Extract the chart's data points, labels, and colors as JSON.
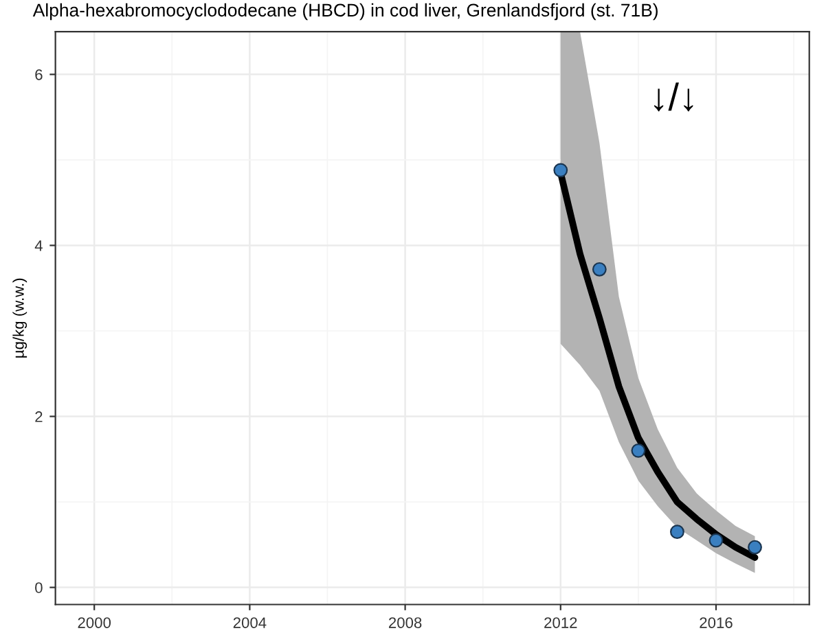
{
  "chart_data": {
    "type": "scatter",
    "title": "Alpha-hexabromocyclododecane (HBCD) in cod liver, Grenlandsfjord (st. 71B)",
    "ylabel": "µg/kg (w.w.)",
    "annotations": [
      "↓/↓"
    ],
    "series": [
      {
        "type": "line",
        "color": "#000000",
        "x": [
          2012,
          2012.5,
          2013,
          2013.5,
          2014,
          2014.5,
          2015,
          2015.5,
          2016,
          2016.5,
          2017
        ],
        "values": [
          4.85,
          3.9,
          3.15,
          2.35,
          1.75,
          1.35,
          1.0,
          0.8,
          0.62,
          0.47,
          0.35
        ],
        "marker": "none",
        "lower": [
          2.85,
          2.6,
          2.3,
          1.7,
          1.25,
          0.95,
          0.7,
          0.55,
          0.4,
          0.28,
          0.17
        ],
        "upper": [
          6.5,
          6.5,
          5.2,
          3.4,
          2.45,
          1.85,
          1.4,
          1.1,
          0.9,
          0.72,
          0.6
        ]
      },
      {
        "marker": "circle",
        "color": "#3a7fc0",
        "x": [
          2012,
          2013,
          2014,
          2015,
          2016,
          2017
        ],
        "values": [
          4.88,
          3.72,
          1.6,
          0.65,
          0.55,
          0.47
        ]
      }
    ],
    "xlim": [
      1999,
      2018.4
    ],
    "xticks": [
      2000,
      2004,
      2008,
      2012,
      2016
    ],
    "ylim": [
      -0.2,
      6.5
    ],
    "yticks": [
      0,
      2,
      4,
      6
    ],
    "grid": true,
    "line_style": "solid"
  }
}
